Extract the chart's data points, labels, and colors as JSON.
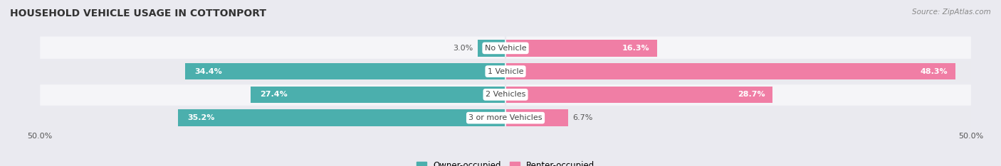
{
  "title": "HOUSEHOLD VEHICLE USAGE IN COTTONPORT",
  "source": "Source: ZipAtlas.com",
  "categories": [
    "No Vehicle",
    "1 Vehicle",
    "2 Vehicles",
    "3 or more Vehicles"
  ],
  "owner_values": [
    3.0,
    34.4,
    27.4,
    35.2
  ],
  "renter_values": [
    16.3,
    48.3,
    28.7,
    6.7
  ],
  "owner_color": "#4BAFAD",
  "renter_color": "#F07EA5",
  "axis_max": 50.0,
  "bg_outer": "#EAEAF0",
  "bg_row_light": "#F5F5F8",
  "bg_row_dark": "#EAEAEF",
  "title_fontsize": 10,
  "source_fontsize": 7.5,
  "label_fontsize": 8,
  "legend_fontsize": 8.5,
  "tick_fontsize": 8
}
